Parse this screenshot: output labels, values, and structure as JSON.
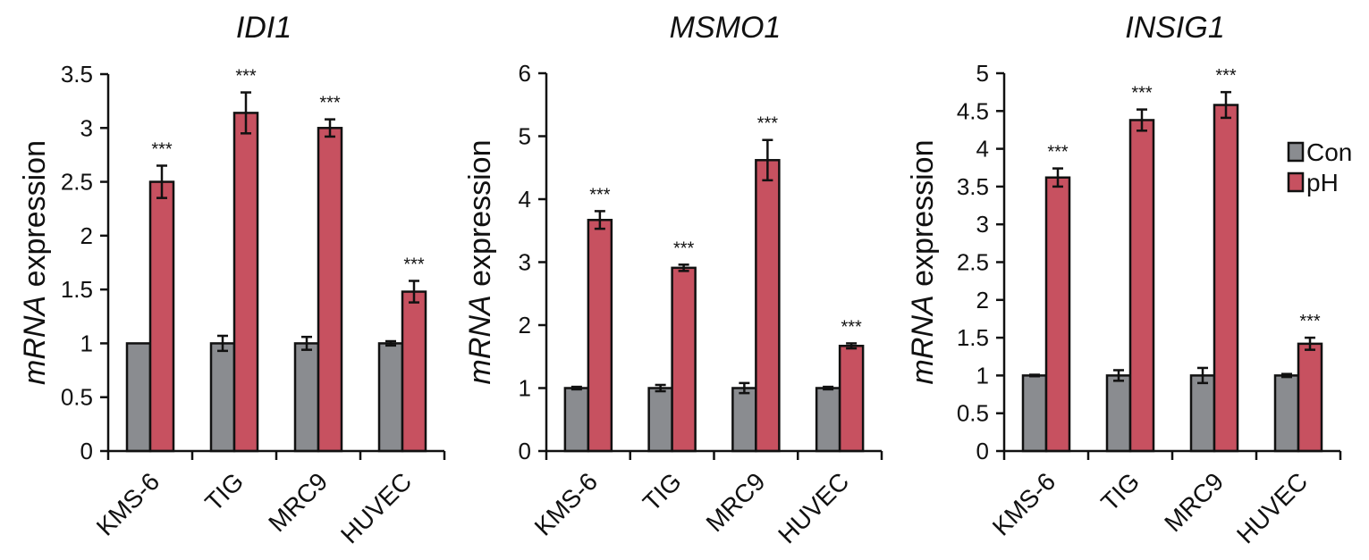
{
  "chart_data": [
    {
      "type": "bar",
      "title": "IDI1",
      "ylabel_italic": "mRNA",
      "ylabel_rest": " expression",
      "categories": [
        "KMS-6",
        "TIG",
        "MRC9",
        "HUVEC"
      ],
      "ylim": [
        0,
        3.5
      ],
      "yticks": [
        "0",
        "0.5",
        "1",
        "1.5",
        "2",
        "2.5",
        "3",
        "3.5"
      ],
      "series": [
        {
          "name": "Con",
          "color": "#8a8c90",
          "values": [
            1.0,
            1.0,
            1.0,
            1.0
          ],
          "errors": [
            0.0,
            0.07,
            0.06,
            0.02
          ]
        },
        {
          "name": "pH",
          "color": "#c75160",
          "values": [
            2.5,
            3.14,
            3.0,
            1.48
          ],
          "errors": [
            0.15,
            0.19,
            0.08,
            0.1
          ]
        }
      ],
      "significance": [
        "***",
        "***",
        "***",
        "***"
      ]
    },
    {
      "type": "bar",
      "title": "MSMO1",
      "ylabel_italic": "mRNA",
      "ylabel_rest": " expression",
      "categories": [
        "KMS-6",
        "TIG",
        "MRC9",
        "HUVEC"
      ],
      "ylim": [
        0,
        6
      ],
      "yticks": [
        "0",
        "1",
        "2",
        "3",
        "4",
        "5",
        "6"
      ],
      "series": [
        {
          "name": "Con",
          "color": "#8a8c90",
          "values": [
            1.0,
            1.0,
            1.0,
            1.0
          ],
          "errors": [
            0.02,
            0.05,
            0.08,
            0.02
          ]
        },
        {
          "name": "pH",
          "color": "#c75160",
          "values": [
            3.67,
            2.91,
            4.62,
            1.67
          ],
          "errors": [
            0.14,
            0.05,
            0.32,
            0.04
          ]
        }
      ],
      "significance": [
        "***",
        "***",
        "***",
        "***"
      ]
    },
    {
      "type": "bar",
      "title": "INSIG1",
      "ylabel_italic": "mRNA",
      "ylabel_rest": " expression",
      "categories": [
        "KMS-6",
        "TIG",
        "MRC9",
        "HUVEC"
      ],
      "ylim": [
        0,
        5
      ],
      "yticks": [
        "0",
        "0.5",
        "1",
        "1.5",
        "2",
        "2.5",
        "3",
        "3.5",
        "4",
        "4.5",
        "5"
      ],
      "series": [
        {
          "name": "Con",
          "color": "#8a8c90",
          "values": [
            1.0,
            1.0,
            1.0,
            1.0
          ],
          "errors": [
            0.01,
            0.07,
            0.1,
            0.02
          ]
        },
        {
          "name": "pH",
          "color": "#c75160",
          "values": [
            3.62,
            4.38,
            4.58,
            1.42
          ],
          "errors": [
            0.12,
            0.14,
            0.17,
            0.08
          ]
        }
      ],
      "significance": [
        "***",
        "***",
        "***",
        "***"
      ],
      "legend": [
        {
          "label": "Con",
          "color": "#8a8c90"
        },
        {
          "label": "pH",
          "color": "#c75160"
        }
      ]
    }
  ]
}
